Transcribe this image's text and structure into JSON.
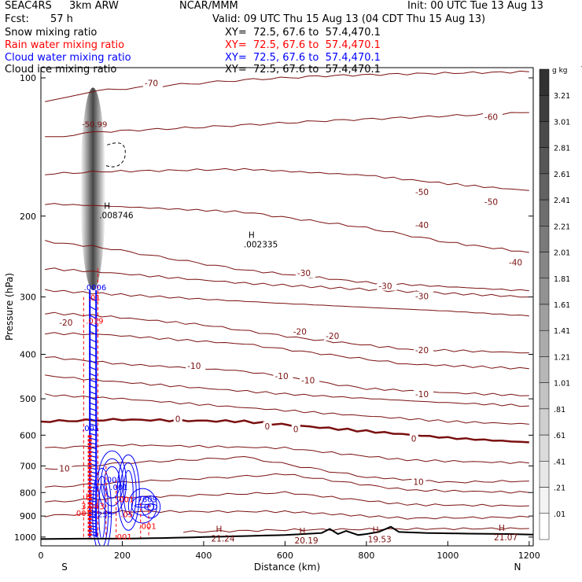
{
  "header": {
    "project": "SEAC4RS",
    "model": "3km ARW",
    "center": "NCAR/MMM",
    "init": "Init: 00 UTC Tue 13 Aug 13",
    "fcst_label": "Fcst:",
    "fcst_value": "57 h",
    "valid": "Valid: 09 UTC Thu 15 Aug 13 (04 CDT Thu 15 Aug 13)"
  },
  "fields": [
    {
      "name": "Snow mixing ratio",
      "xy": "XY=  72.5, 67.6 to  57.4,470.1",
      "color": "#000000"
    },
    {
      "name": "Rain water mixing ratio",
      "xy": "XY=  72.5, 67.6 to  57.4,470.1",
      "color": "#ff0000"
    },
    {
      "name": "Cloud water mixing ratio",
      "xy": "XY=  72.5, 67.6 to  57.4,470.1",
      "color": "#0000ff"
    },
    {
      "name": "Cloud ice mixing ratio",
      "xy": "XY=  72.5, 67.6 to  57.4,470.1",
      "color": "#000000"
    }
  ],
  "colors": {
    "temperature": "#7a0f0f",
    "rain": "#ff0000",
    "cloud_water": "#0000ff",
    "terrain": "#000000"
  },
  "chart_data": {
    "type": "contour",
    "xlabel": "Distance (km)",
    "ylabel": "Pressure (hPa)",
    "xlim": [
      0,
      1210
    ],
    "ylim": [
      1045,
      95
    ],
    "y_scale": "log",
    "x_ticks": [
      0,
      200,
      400,
      600,
      800,
      1000,
      1200
    ],
    "x_tick_labels": [
      "0",
      "200",
      "400",
      "600",
      "800",
      "1000",
      "1200"
    ],
    "y_ticks": [
      100,
      200,
      300,
      400,
      500,
      600,
      700,
      800,
      900,
      1000
    ],
    "y_tick_labels": [
      "100",
      "200",
      "300",
      "400",
      "500",
      "600",
      "700",
      "800",
      "900",
      "1000"
    ],
    "endpoints": {
      "left": "S",
      "right": "N"
    },
    "colorbar": {
      "unit": "g kg",
      "unit_exp": "−1",
      "labels": [
        "3.21",
        "3.01",
        "2.81",
        "2.61",
        "2.41",
        "2.21",
        "2.01",
        "1.81",
        "1.61",
        "1.41",
        "1.21",
        "1.01",
        ".81",
        ".61",
        ".41",
        ".21",
        ".01"
      ]
    },
    "isotherms": [
      {
        "value": -70,
        "points": [
          [
            10,
            113
          ],
          [
            120,
            107
          ],
          [
            300,
            104
          ],
          [
            500,
            101
          ],
          [
            700,
            99
          ],
          [
            900,
            98
          ],
          [
            1200,
            97
          ]
        ],
        "labels": [
          {
            "text": "-70",
            "x": 255,
            "p": 103
          }
        ]
      },
      {
        "value": -60,
        "points": [
          [
            10,
            135
          ],
          [
            150,
            131
          ],
          [
            400,
            128
          ],
          [
            700,
            124
          ],
          [
            1000,
            121
          ],
          [
            1200,
            119
          ]
        ],
        "labels": [
          {
            "text": "-60",
            "x": 1090,
            "p": 122
          }
        ]
      },
      {
        "value": -50,
        "points": [
          [
            10,
            162
          ],
          [
            150,
            160
          ],
          [
            500,
            158
          ],
          [
            800,
            163
          ],
          [
            1000,
            170
          ],
          [
            1200,
            176
          ]
        ],
        "labels": [
          {
            "text": "-50",
            "x": 920,
            "p": 178
          },
          {
            "text": "-50",
            "x": 1090,
            "p": 187
          }
        ]
      },
      {
        "value": -40,
        "points": [
          [
            10,
            188
          ],
          [
            150,
            190
          ],
          [
            500,
            196
          ],
          [
            800,
            212
          ],
          [
            1000,
            228
          ],
          [
            1200,
            240
          ]
        ],
        "labels": [
          {
            "text": "-40",
            "x": 920,
            "p": 210
          },
          {
            "text": "-40",
            "x": 1150,
            "p": 253
          }
        ]
      },
      {
        "value": -30,
        "points": [
          [
            10,
            227
          ],
          [
            150,
            234
          ],
          [
            500,
            262
          ],
          [
            800,
            279
          ],
          [
            1000,
            285
          ],
          [
            1200,
            291
          ]
        ],
        "labels": [
          {
            "text": "-30",
            "x": 630,
            "p": 267
          },
          {
            "text": "-30",
            "x": 830,
            "p": 285
          },
          {
            "text": "-30",
            "x": 920,
            "p": 300
          }
        ]
      },
      {
        "value": -20,
        "points": [
          [
            10,
            325
          ],
          [
            150,
            330
          ],
          [
            400,
            345
          ],
          [
            650,
            370
          ],
          [
            900,
            390
          ],
          [
            1200,
            397
          ]
        ],
        "labels": [
          {
            "text": "-20",
            "x": 45,
            "p": 342
          },
          {
            "text": "-20",
            "x": 620,
            "p": 358
          },
          {
            "text": "-20",
            "x": 700,
            "p": 366
          },
          {
            "text": "-20",
            "x": 920,
            "p": 393
          }
        ]
      },
      {
        "value": -10,
        "points": [
          [
            10,
            405
          ],
          [
            200,
            420
          ],
          [
            500,
            435
          ],
          [
            800,
            475
          ],
          [
            1000,
            485
          ],
          [
            1200,
            492
          ]
        ],
        "labels": [
          {
            "text": "-10",
            "x": 360,
            "p": 425
          },
          {
            "text": "-10",
            "x": 575,
            "p": 448
          },
          {
            "text": "-10",
            "x": 640,
            "p": 457
          },
          {
            "text": "-10",
            "x": 920,
            "p": 490
          }
        ]
      },
      {
        "value": 0,
        "points": [
          [
            0,
            560
          ],
          [
            200,
            555
          ],
          [
            500,
            560
          ],
          [
            800,
            588
          ],
          [
            1000,
            608
          ],
          [
            1200,
            622
          ]
        ],
        "labels": [
          {
            "text": "0",
            "x": 330,
            "p": 555
          },
          {
            "text": "0",
            "x": 550,
            "p": 576
          },
          {
            "text": "0",
            "x": 620,
            "p": 584
          },
          {
            "text": "0",
            "x": 910,
            "p": 612
          }
        ],
        "bold": true
      },
      {
        "value": 10,
        "points": [
          [
            10,
            712
          ],
          [
            200,
            690
          ],
          [
            500,
            670
          ],
          [
            800,
            740
          ],
          [
            1000,
            760
          ],
          [
            1200,
            755
          ]
        ],
        "labels": [
          {
            "text": "10",
            "x": 45,
            "p": 712
          },
          {
            "text": "10",
            "x": 915,
            "p": 760
          }
        ]
      }
    ],
    "extra_isotherms": [
      [
        [
          10,
          260
        ],
        [
          150,
          265
        ],
        [
          500,
          280
        ],
        [
          900,
          292
        ],
        [
          1200,
          300
        ]
      ],
      [
        [
          10,
          290
        ],
        [
          150,
          295
        ],
        [
          600,
          310
        ],
        [
          1000,
          322
        ],
        [
          1200,
          330
        ]
      ],
      [
        [
          10,
          360
        ],
        [
          150,
          362
        ],
        [
          500,
          380
        ],
        [
          900,
          420
        ],
        [
          1200,
          430
        ]
      ],
      [
        [
          10,
          445
        ],
        [
          200,
          460
        ],
        [
          600,
          488
        ],
        [
          1000,
          510
        ],
        [
          1200,
          518
        ]
      ],
      [
        [
          10,
          490
        ],
        [
          200,
          500
        ],
        [
          600,
          530
        ],
        [
          1000,
          560
        ],
        [
          1200,
          568
        ]
      ],
      [
        [
          10,
          640
        ],
        [
          200,
          630
        ],
        [
          600,
          640
        ],
        [
          900,
          680
        ],
        [
          1200,
          690
        ]
      ],
      [
        [
          10,
          780
        ],
        [
          200,
          760
        ],
        [
          600,
          730
        ],
        [
          900,
          790
        ],
        [
          1200,
          800
        ]
      ],
      [
        [
          10,
          840
        ],
        [
          200,
          820
        ],
        [
          600,
          800
        ],
        [
          900,
          850
        ],
        [
          1200,
          855
        ]
      ],
      [
        [
          10,
          900
        ],
        [
          200,
          880
        ],
        [
          600,
          880
        ],
        [
          900,
          910
        ],
        [
          1200,
          905
        ]
      ],
      [
        [
          350,
          975
        ],
        [
          600,
          965
        ],
        [
          900,
          960
        ],
        [
          1200,
          958
        ]
      ]
    ],
    "maxima": [
      {
        "text": "H",
        "x": 155,
        "p": 193,
        "value": ".008746"
      },
      {
        "text": "H",
        "x": 510,
        "p": 223,
        "value": ".002335"
      },
      {
        "text": "H",
        "x": 110,
        "p": 830,
        "value": "3.043"
      },
      {
        "text": "H",
        "x": 430,
        "p": 975,
        "value": "21.24"
      },
      {
        "text": "H",
        "x": 635,
        "p": 985,
        "value": "20.19"
      },
      {
        "text": "H",
        "x": 815,
        "p": 980,
        "value": "19.53"
      },
      {
        "text": "H",
        "x": 1125,
        "p": 970,
        "value": "21.07"
      }
    ],
    "field_labels": [
      {
        "text": "-50.99",
        "x": 120,
        "p": 128,
        "color": "#7a0f0f"
      },
      {
        "text": ".0006",
        "x": 125,
        "p": 290,
        "color": "#0000ff"
      },
      {
        "text": ".01",
        "x": 135,
        "p": 305,
        "color": "#ff0000"
      },
      {
        "text": ".019",
        "x": 130,
        "p": 343,
        "color": "#ff0000"
      },
      {
        "text": ".001",
        "x": 120,
        "p": 588,
        "color": "#0000ff"
      },
      {
        "text": ".001",
        "x": 175,
        "p": 760,
        "color": "#0000ff"
      },
      {
        "text": ".001",
        "x": 190,
        "p": 790,
        "color": "#0000ff"
      },
      {
        "text": ".001",
        "x": 205,
        "p": 840,
        "color": "#ff0000"
      },
      {
        "text": ".7609",
        "x": 250,
        "p": 840,
        "color": "#0000ff"
      },
      {
        "text": ".001",
        "x": 100,
        "p": 900,
        "color": "#ff0000"
      },
      {
        "text": ".2255",
        "x": 140,
        "p": 905,
        "color": "#0000ff"
      },
      {
        "text": ".05",
        "x": 215,
        "p": 905,
        "color": "#ff0000"
      },
      {
        "text": ".001",
        "x": 260,
        "p": 960,
        "color": "#ff0000"
      },
      {
        "text": ".001",
        "x": 200,
        "p": 1012,
        "color": "#ff0000"
      }
    ],
    "terrain": [
      [
        0,
        1010
      ],
      [
        100,
        1008
      ],
      [
        200,
        1008
      ],
      [
        300,
        1005
      ],
      [
        400,
        1000
      ],
      [
        500,
        995
      ],
      [
        600,
        990
      ],
      [
        690,
        980
      ],
      [
        710,
        960
      ],
      [
        730,
        985
      ],
      [
        750,
        970
      ],
      [
        780,
        990
      ],
      [
        800,
        985
      ],
      [
        830,
        975
      ],
      [
        860,
        950
      ],
      [
        880,
        975
      ],
      [
        950,
        980
      ],
      [
        1050,
        983
      ],
      [
        1150,
        985
      ],
      [
        1210,
        988
      ]
    ]
  }
}
